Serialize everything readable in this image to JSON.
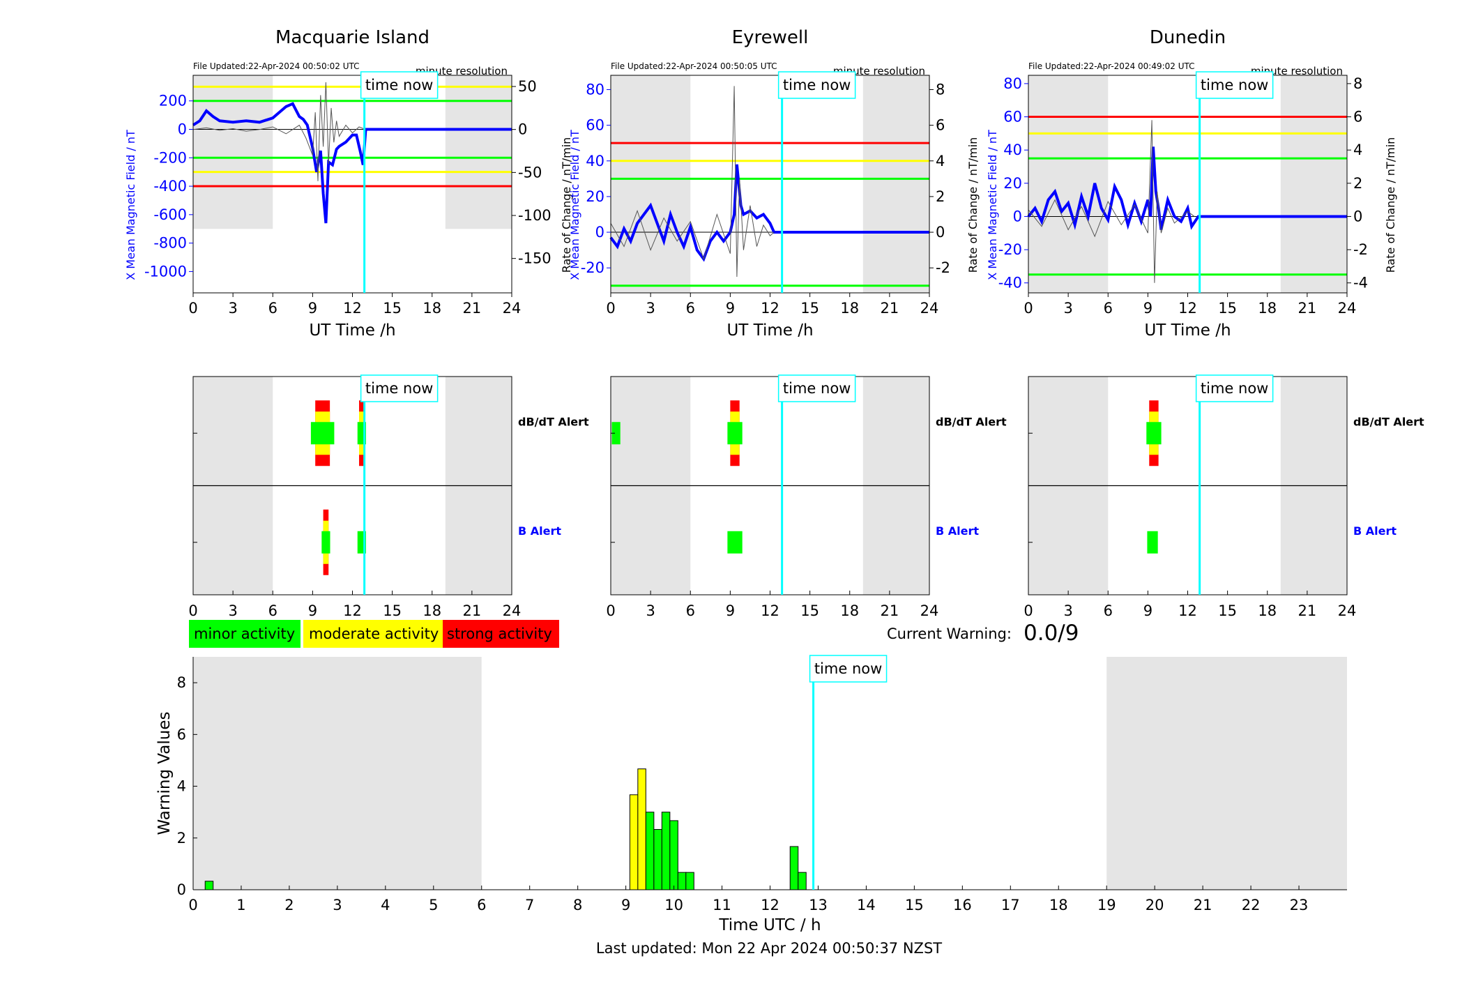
{
  "chart_data": [
    {
      "type": "line",
      "title": "Macquarie Island",
      "file_updated": "File Updated:22-Apr-2024 00:50:02 UTC",
      "resolution_label": "minute resolution",
      "xlabel": "UT Time /h",
      "ylabel": "X Mean Magnetic Field / nT",
      "ylabel_right": "Rate of Change / nT/min",
      "xlim": [
        0,
        24
      ],
      "xticks": [
        "0",
        "3",
        "6",
        "9",
        "12",
        "15",
        "18",
        "21",
        "24"
      ],
      "ylim": [
        -1150,
        380
      ],
      "yticks": [
        200,
        0,
        -200,
        -400,
        -600,
        -800,
        -1000
      ],
      "ylim_right": [
        -190,
        63
      ],
      "yticks_right": [
        50,
        0,
        -50,
        -100,
        -150
      ],
      "night_shading": [
        [
          0,
          6
        ],
        [
          19,
          24
        ]
      ],
      "night_shade_floor": -700,
      "thresholds": [
        {
          "value": 300,
          "color": "#ffff00"
        },
        {
          "value": 200,
          "color": "#00ff00"
        },
        {
          "value": -200,
          "color": "#00ff00"
        },
        {
          "value": -300,
          "color": "#ffff00"
        },
        {
          "value": -400,
          "color": "#ff0000"
        }
      ],
      "time_now": 12.9,
      "time_now_label": "time now",
      "series": [
        {
          "color": "#0000ff",
          "x": [
            0,
            0.5,
            1,
            1.5,
            2,
            3,
            4,
            5,
            6,
            6.5,
            7,
            7.5,
            8,
            8.3,
            8.6,
            9,
            9.3,
            9.6,
            9.8,
            10,
            10.2,
            10.5,
            10.8,
            11,
            11.5,
            12,
            12.3,
            12.6,
            12.8,
            13,
            24
          ],
          "y": [
            30,
            60,
            130,
            90,
            60,
            50,
            60,
            50,
            80,
            120,
            160,
            180,
            90,
            70,
            30,
            -130,
            -300,
            -150,
            -450,
            -660,
            -230,
            -250,
            -140,
            -120,
            -90,
            -40,
            -40,
            -160,
            -250,
            0,
            0
          ]
        },
        {
          "color": "#555555",
          "axis": "right",
          "x": [
            0,
            1,
            2,
            3,
            4,
            5,
            6,
            7,
            8,
            8.5,
            9,
            9.2,
            9.4,
            9.6,
            9.8,
            10,
            10.2,
            10.4,
            10.6,
            10.8,
            11,
            11.5,
            12,
            12.5,
            13
          ],
          "y": [
            0,
            2,
            -1,
            1,
            -2,
            0,
            3,
            -5,
            5,
            -10,
            -30,
            20,
            -60,
            40,
            -20,
            55,
            -40,
            25,
            -15,
            10,
            -8,
            5,
            -4,
            3,
            0
          ]
        }
      ]
    },
    {
      "type": "line",
      "title": "Eyrewell",
      "file_updated": "File Updated:22-Apr-2024 00:50:05 UTC",
      "resolution_label": "minute resolution",
      "xlabel": "UT Time /h",
      "ylabel": "X Mean Magnetic Field / nT",
      "ylabel_right": "Rate of Change / nT/min",
      "xlim": [
        0,
        24
      ],
      "xticks": [
        "0",
        "3",
        "6",
        "9",
        "12",
        "15",
        "18",
        "21",
        "24"
      ],
      "ylim": [
        -34,
        88
      ],
      "yticks": [
        80,
        60,
        40,
        20,
        0,
        -20
      ],
      "ylim_right": [
        -3.4,
        8.8
      ],
      "yticks_right": [
        8,
        6,
        4,
        2,
        0,
        -2
      ],
      "night_shading": [
        [
          0,
          6
        ],
        [
          19,
          24
        ]
      ],
      "thresholds": [
        {
          "value": 50,
          "color": "#ff0000"
        },
        {
          "value": 40,
          "color": "#ffff00"
        },
        {
          "value": 30,
          "color": "#00ff00"
        },
        {
          "value": -30,
          "color": "#00ff00"
        }
      ],
      "time_now": 12.9,
      "time_now_label": "time now",
      "series": [
        {
          "color": "#0000ff",
          "x": [
            0,
            0.5,
            1,
            1.5,
            2,
            2.5,
            3,
            3.5,
            4,
            4.5,
            5,
            5.5,
            6,
            6.5,
            7,
            7.5,
            8,
            8.5,
            9,
            9.3,
            9.5,
            9.8,
            10,
            10.5,
            11,
            11.5,
            12,
            12.3,
            24
          ],
          "y": [
            -3,
            -8,
            2,
            -5,
            5,
            10,
            15,
            5,
            -5,
            10,
            0,
            -8,
            3,
            -10,
            -15,
            -5,
            0,
            -5,
            0,
            10,
            38,
            15,
            10,
            12,
            8,
            10,
            5,
            0,
            0
          ]
        },
        {
          "color": "#555555",
          "axis": "right",
          "x": [
            0,
            1,
            2,
            3,
            4,
            5,
            6,
            7,
            8,
            9,
            9.3,
            9.5,
            9.7,
            10,
            10.5,
            11,
            11.5,
            12,
            12.3
          ],
          "y": [
            0.5,
            -0.8,
            1.2,
            -1,
            0.8,
            -0.5,
            0.6,
            -1.5,
            1,
            -1.2,
            8.2,
            -2.5,
            3,
            -1,
            1.5,
            -0.8,
            0.4,
            -0.2,
            0
          ]
        }
      ]
    },
    {
      "type": "line",
      "title": "Dunedin",
      "file_updated": "File Updated:22-Apr-2024 00:49:02 UTC",
      "resolution_label": "minute resolution",
      "xlabel": "UT Time /h",
      "ylabel": "X Mean Magnetic Field / nT",
      "ylabel_right": "Rate of Change / nT/min",
      "xlim": [
        0,
        24
      ],
      "xticks": [
        "0",
        "3",
        "6",
        "9",
        "12",
        "15",
        "18",
        "21",
        "24"
      ],
      "ylim": [
        -46,
        85
      ],
      "yticks": [
        80,
        60,
        40,
        20,
        0,
        -20,
        -40
      ],
      "ylim_right": [
        -4.6,
        8.5
      ],
      "yticks_right": [
        8,
        6,
        4,
        2,
        0,
        -2,
        -4
      ],
      "night_shading": [
        [
          0,
          6
        ],
        [
          19,
          24
        ]
      ],
      "thresholds": [
        {
          "value": 60,
          "color": "#ff0000"
        },
        {
          "value": 50,
          "color": "#ffff00"
        },
        {
          "value": 35,
          "color": "#00ff00"
        },
        {
          "value": -35,
          "color": "#00ff00"
        }
      ],
      "time_now": 12.9,
      "time_now_label": "time now",
      "series": [
        {
          "color": "#0000ff",
          "x": [
            0,
            0.5,
            1,
            1.5,
            2,
            2.5,
            3,
            3.5,
            4,
            4.5,
            5,
            5.5,
            6,
            6.5,
            7,
            7.5,
            8,
            8.5,
            9,
            9.2,
            9.4,
            9.6,
            9.8,
            10,
            10.5,
            11,
            11.5,
            12,
            12.3,
            12.8,
            24
          ],
          "y": [
            0,
            5,
            -3,
            10,
            15,
            3,
            8,
            -5,
            12,
            0,
            20,
            5,
            -2,
            18,
            10,
            -5,
            8,
            -3,
            10,
            0,
            42,
            15,
            5,
            -8,
            10,
            0,
            -3,
            5,
            -6,
            0,
            0
          ]
        },
        {
          "color": "#555555",
          "axis": "right",
          "x": [
            0,
            1,
            2,
            3,
            4,
            5,
            6,
            7,
            8,
            9,
            9.3,
            9.5,
            9.7,
            10,
            10.5,
            11,
            12,
            12.5
          ],
          "y": [
            0.4,
            -0.6,
            1,
            -0.8,
            0.6,
            -1.2,
            0.9,
            -0.5,
            0.7,
            -1,
            5.8,
            -4,
            1.5,
            -1,
            0.5,
            -0.4,
            0.3,
            0
          ]
        }
      ]
    },
    {
      "type": "heatmap",
      "site": "Macquarie Island",
      "xlim": [
        0,
        24
      ],
      "xticks": [
        "0",
        "3",
        "6",
        "9",
        "12",
        "15",
        "18",
        "21",
        "24"
      ],
      "rows": [
        "dB/dT Alert",
        "B Alert"
      ],
      "row_label_colors": [
        "#000000",
        "#0000ff"
      ],
      "night_shading": [
        [
          0,
          6
        ],
        [
          19,
          24
        ]
      ],
      "time_now": 12.9,
      "time_now_label": "time now",
      "cells": [
        {
          "row": 0,
          "x": [
            9.2,
            10.3
          ],
          "level": 3
        },
        {
          "row": 0,
          "x": [
            12.5,
            12.9
          ],
          "level": 3
        },
        {
          "row": 1,
          "x": [
            9.8,
            10.2
          ],
          "level": 3
        },
        {
          "row": 1,
          "x": [
            12.5,
            12.9
          ],
          "level": 1
        }
      ]
    },
    {
      "type": "heatmap",
      "site": "Eyrewell",
      "xlim": [
        0,
        24
      ],
      "xticks": [
        "0",
        "3",
        "6",
        "9",
        "12",
        "15",
        "18",
        "21",
        "24"
      ],
      "rows": [
        "dB/dT Alert",
        "B Alert"
      ],
      "row_label_colors": [
        "#000000",
        "#0000ff"
      ],
      "night_shading": [
        [
          0,
          6
        ],
        [
          19,
          24
        ]
      ],
      "time_now": 12.9,
      "time_now_label": "time now",
      "cells": [
        {
          "row": 0,
          "x": [
            0.2,
            0.6
          ],
          "level": 1
        },
        {
          "row": 0,
          "x": [
            9.0,
            9.7
          ],
          "level": 3
        },
        {
          "row": 1,
          "x": [
            9.0,
            9.7
          ],
          "level": 1
        }
      ]
    },
    {
      "type": "heatmap",
      "site": "Dunedin",
      "xlim": [
        0,
        24
      ],
      "xticks": [
        "0",
        "3",
        "6",
        "9",
        "12",
        "15",
        "18",
        "21",
        "24"
      ],
      "rows": [
        "dB/dT Alert",
        "B Alert"
      ],
      "row_label_colors": [
        "#000000",
        "#0000ff"
      ],
      "night_shading": [
        [
          0,
          6
        ],
        [
          19,
          24
        ]
      ],
      "time_now": 12.9,
      "time_now_label": "time now",
      "cells": [
        {
          "row": 0,
          "x": [
            9.1,
            9.8
          ],
          "level": 3
        },
        {
          "row": 1,
          "x": [
            9.1,
            9.6
          ],
          "level": 1
        }
      ]
    },
    {
      "type": "bar",
      "xlabel": "Time UTC / h",
      "ylabel": "Warning Values",
      "xlim": [
        0,
        24
      ],
      "xticks": [
        "0",
        "1",
        "2",
        "3",
        "4",
        "5",
        "6",
        "7",
        "8",
        "9",
        "10",
        "11",
        "12",
        "13",
        "14",
        "15",
        "16",
        "17",
        "18",
        "19",
        "20",
        "21",
        "22",
        "23"
      ],
      "ylim": [
        0,
        9
      ],
      "yticks": [
        "0",
        "2",
        "4",
        "6",
        "8"
      ],
      "night_shading": [
        [
          0,
          6
        ],
        [
          19,
          24
        ]
      ],
      "time_now": 12.9,
      "time_now_label": "time now",
      "bar_width": 0.1667,
      "bars": [
        {
          "x": 0.333,
          "value": 0.33,
          "color": "#00ff00"
        },
        {
          "x": 9.167,
          "value": 3.67,
          "color": "#ffff00"
        },
        {
          "x": 9.333,
          "value": 4.67,
          "color": "#ffff00"
        },
        {
          "x": 9.5,
          "value": 3.0,
          "color": "#00ff00"
        },
        {
          "x": 9.667,
          "value": 2.33,
          "color": "#00ff00"
        },
        {
          "x": 9.833,
          "value": 3.0,
          "color": "#00ff00"
        },
        {
          "x": 10.0,
          "value": 2.67,
          "color": "#00ff00"
        },
        {
          "x": 10.167,
          "value": 0.67,
          "color": "#00ff00"
        },
        {
          "x": 10.333,
          "value": 0.67,
          "color": "#00ff00"
        },
        {
          "x": 12.5,
          "value": 1.67,
          "color": "#00ff00"
        },
        {
          "x": 12.667,
          "value": 0.67,
          "color": "#00ff00"
        }
      ]
    }
  ],
  "legend": [
    {
      "label": "minor activity",
      "color": "#00ff00"
    },
    {
      "label": "moderate activity",
      "color": "#ffff00"
    },
    {
      "label": "strong activity",
      "color": "#ff0000"
    }
  ],
  "current_warning": {
    "label": "Current Warning:",
    "value": "0.0/9"
  },
  "footer": "Last updated: Mon 22 Apr 2024 00:50:37 NZST",
  "colors": {
    "night": "#e5e5e5",
    "time_now": "#00ffff",
    "field": "#0000ff",
    "rate": "#555555"
  }
}
